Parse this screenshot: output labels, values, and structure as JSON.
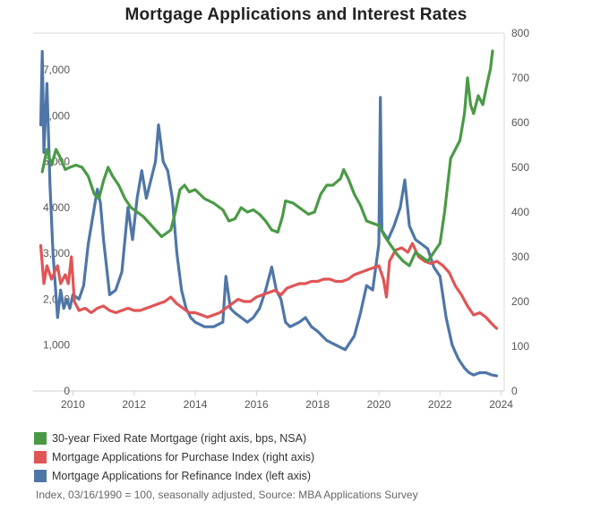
{
  "title": "Mortgage Applications and Interest Rates",
  "footnote": "Index, 03/16/1990 = 100, seasonally adjusted, Source: MBA Applications Survey",
  "legend": [
    {
      "label": "30-year Fixed Rate Mortgage (right axis, bps, NSA)",
      "color": "#4a9a45"
    },
    {
      "label": "Mortgage Applications for Purchase Index (right axis)",
      "color": "#e05556"
    },
    {
      "label": "Mortgage Applications for Refinance Index (left axis)",
      "color": "#4f76a8"
    }
  ],
  "chart_data": {
    "type": "line",
    "title": "Mortgage Applications and Interest Rates",
    "xlabel": "",
    "ylabel": "",
    "xlim": [
      2008.7,
      2024.1
    ],
    "x_ticks": [
      2010,
      2012,
      2014,
      2016,
      2018,
      2020,
      2022,
      2024
    ],
    "left_axis": {
      "ylim": [
        0,
        7800
      ],
      "ticks": [
        0,
        1000,
        2000,
        3000,
        4000,
        5000,
        6000,
        7000
      ],
      "tick_labels": [
        "0",
        "1,000",
        "2,000",
        "3,000",
        "4,000",
        "5,000",
        "6,000",
        "7,000"
      ]
    },
    "right_axis": {
      "ylim": [
        0,
        800
      ],
      "ticks": [
        0,
        100,
        200,
        300,
        400,
        500,
        600,
        700,
        800
      ],
      "tick_labels": [
        "0",
        "100",
        "200",
        "300",
        "400",
        "500",
        "600",
        "700",
        "800"
      ]
    },
    "grid": false,
    "legend_position": "bottom-left",
    "series": [
      {
        "name": "30-year Fixed Rate Mortgage (right axis, bps, NSA)",
        "axis": "right",
        "color": "#4a9a45",
        "points": [
          [
            2009.0,
            490
          ],
          [
            2009.15,
            540
          ],
          [
            2009.3,
            505
          ],
          [
            2009.45,
            540
          ],
          [
            2009.6,
            520
          ],
          [
            2009.75,
            495
          ],
          [
            2009.9,
            500
          ],
          [
            2010.1,
            505
          ],
          [
            2010.3,
            500
          ],
          [
            2010.5,
            480
          ],
          [
            2010.7,
            440
          ],
          [
            2010.85,
            430
          ],
          [
            2011.0,
            470
          ],
          [
            2011.15,
            500
          ],
          [
            2011.3,
            480
          ],
          [
            2011.5,
            460
          ],
          [
            2011.7,
            430
          ],
          [
            2011.9,
            410
          ],
          [
            2012.1,
            400
          ],
          [
            2012.3,
            390
          ],
          [
            2012.5,
            375
          ],
          [
            2012.7,
            360
          ],
          [
            2012.9,
            345
          ],
          [
            2013.0,
            350
          ],
          [
            2013.2,
            360
          ],
          [
            2013.35,
            400
          ],
          [
            2013.5,
            450
          ],
          [
            2013.65,
            460
          ],
          [
            2013.8,
            445
          ],
          [
            2014.0,
            450
          ],
          [
            2014.3,
            430
          ],
          [
            2014.6,
            420
          ],
          [
            2014.9,
            405
          ],
          [
            2015.1,
            380
          ],
          [
            2015.3,
            385
          ],
          [
            2015.5,
            410
          ],
          [
            2015.7,
            400
          ],
          [
            2015.9,
            405
          ],
          [
            2016.1,
            395
          ],
          [
            2016.3,
            380
          ],
          [
            2016.5,
            360
          ],
          [
            2016.7,
            355
          ],
          [
            2016.85,
            390
          ],
          [
            2016.95,
            425
          ],
          [
            2017.2,
            420
          ],
          [
            2017.5,
            405
          ],
          [
            2017.7,
            395
          ],
          [
            2017.9,
            400
          ],
          [
            2018.1,
            440
          ],
          [
            2018.3,
            460
          ],
          [
            2018.5,
            460
          ],
          [
            2018.75,
            475
          ],
          [
            2018.85,
            495
          ],
          [
            2019.0,
            475
          ],
          [
            2019.2,
            440
          ],
          [
            2019.4,
            415
          ],
          [
            2019.6,
            380
          ],
          [
            2019.8,
            375
          ],
          [
            2020.0,
            370
          ],
          [
            2020.2,
            345
          ],
          [
            2020.4,
            325
          ],
          [
            2020.6,
            305
          ],
          [
            2020.8,
            290
          ],
          [
            2021.0,
            280
          ],
          [
            2021.2,
            310
          ],
          [
            2021.4,
            300
          ],
          [
            2021.6,
            290
          ],
          [
            2021.8,
            310
          ],
          [
            2022.0,
            330
          ],
          [
            2022.15,
            400
          ],
          [
            2022.35,
            520
          ],
          [
            2022.5,
            540
          ],
          [
            2022.65,
            560
          ],
          [
            2022.8,
            620
          ],
          [
            2022.9,
            700
          ],
          [
            2023.0,
            640
          ],
          [
            2023.1,
            620
          ],
          [
            2023.25,
            660
          ],
          [
            2023.4,
            640
          ],
          [
            2023.55,
            690
          ],
          [
            2023.65,
            720
          ],
          [
            2023.72,
            760
          ]
        ]
      },
      {
        "name": "Mortgage Applications for Purchase Index (right axis)",
        "axis": "right",
        "color": "#e05556",
        "points": [
          [
            2008.95,
            325
          ],
          [
            2009.05,
            240
          ],
          [
            2009.15,
            280
          ],
          [
            2009.3,
            250
          ],
          [
            2009.5,
            280
          ],
          [
            2009.6,
            240
          ],
          [
            2009.75,
            260
          ],
          [
            2009.85,
            240
          ],
          [
            2009.95,
            300
          ],
          [
            2010.05,
            200
          ],
          [
            2010.2,
            180
          ],
          [
            2010.4,
            185
          ],
          [
            2010.6,
            175
          ],
          [
            2010.8,
            185
          ],
          [
            2011.0,
            190
          ],
          [
            2011.2,
            180
          ],
          [
            2011.4,
            175
          ],
          [
            2011.6,
            180
          ],
          [
            2011.8,
            185
          ],
          [
            2012.0,
            180
          ],
          [
            2012.2,
            180
          ],
          [
            2012.4,
            185
          ],
          [
            2012.6,
            190
          ],
          [
            2012.8,
            195
          ],
          [
            2013.0,
            200
          ],
          [
            2013.2,
            210
          ],
          [
            2013.4,
            195
          ],
          [
            2013.6,
            185
          ],
          [
            2013.8,
            175
          ],
          [
            2014.0,
            175
          ],
          [
            2014.2,
            170
          ],
          [
            2014.4,
            165
          ],
          [
            2014.6,
            170
          ],
          [
            2014.8,
            175
          ],
          [
            2015.0,
            185
          ],
          [
            2015.2,
            195
          ],
          [
            2015.4,
            205
          ],
          [
            2015.6,
            200
          ],
          [
            2015.8,
            200
          ],
          [
            2016.0,
            210
          ],
          [
            2016.2,
            215
          ],
          [
            2016.4,
            220
          ],
          [
            2016.6,
            225
          ],
          [
            2016.8,
            215
          ],
          [
            2017.0,
            230
          ],
          [
            2017.2,
            235
          ],
          [
            2017.4,
            240
          ],
          [
            2017.6,
            240
          ],
          [
            2017.8,
            245
          ],
          [
            2018.0,
            245
          ],
          [
            2018.2,
            250
          ],
          [
            2018.4,
            250
          ],
          [
            2018.6,
            245
          ],
          [
            2018.8,
            245
          ],
          [
            2019.0,
            250
          ],
          [
            2019.2,
            260
          ],
          [
            2019.4,
            265
          ],
          [
            2019.6,
            270
          ],
          [
            2019.8,
            275
          ],
          [
            2020.0,
            280
          ],
          [
            2020.15,
            250
          ],
          [
            2020.25,
            210
          ],
          [
            2020.35,
            290
          ],
          [
            2020.55,
            315
          ],
          [
            2020.75,
            320
          ],
          [
            2020.95,
            310
          ],
          [
            2021.1,
            330
          ],
          [
            2021.3,
            300
          ],
          [
            2021.5,
            290
          ],
          [
            2021.7,
            285
          ],
          [
            2021.9,
            290
          ],
          [
            2022.1,
            280
          ],
          [
            2022.3,
            265
          ],
          [
            2022.5,
            235
          ],
          [
            2022.7,
            215
          ],
          [
            2022.9,
            190
          ],
          [
            2023.1,
            170
          ],
          [
            2023.3,
            175
          ],
          [
            2023.5,
            165
          ],
          [
            2023.7,
            150
          ],
          [
            2023.85,
            140
          ]
        ]
      },
      {
        "name": "Mortgage Applications for Refinance Index (left axis)",
        "axis": "left",
        "color": "#4f76a8",
        "points": [
          [
            2008.95,
            5800
          ],
          [
            2009.0,
            7400
          ],
          [
            2009.05,
            5200
          ],
          [
            2009.15,
            6700
          ],
          [
            2009.25,
            4500
          ],
          [
            2009.35,
            3000
          ],
          [
            2009.5,
            1600
          ],
          [
            2009.6,
            2200
          ],
          [
            2009.7,
            1800
          ],
          [
            2009.8,
            2000
          ],
          [
            2009.9,
            1800
          ],
          [
            2010.0,
            2100
          ],
          [
            2010.2,
            2000
          ],
          [
            2010.35,
            2300
          ],
          [
            2010.5,
            3200
          ],
          [
            2010.6,
            3600
          ],
          [
            2010.7,
            4000
          ],
          [
            2010.8,
            4400
          ],
          [
            2010.9,
            4100
          ],
          [
            2011.0,
            3300
          ],
          [
            2011.2,
            2100
          ],
          [
            2011.4,
            2200
          ],
          [
            2011.6,
            2600
          ],
          [
            2011.8,
            4000
          ],
          [
            2011.95,
            3300
          ],
          [
            2012.1,
            4200
          ],
          [
            2012.25,
            4800
          ],
          [
            2012.4,
            4200
          ],
          [
            2012.55,
            4600
          ],
          [
            2012.7,
            5000
          ],
          [
            2012.8,
            5800
          ],
          [
            2012.95,
            5000
          ],
          [
            2013.1,
            4800
          ],
          [
            2013.25,
            4200
          ],
          [
            2013.4,
            3000
          ],
          [
            2013.55,
            2200
          ],
          [
            2013.7,
            1800
          ],
          [
            2013.85,
            1600
          ],
          [
            2014.0,
            1500
          ],
          [
            2014.3,
            1400
          ],
          [
            2014.6,
            1400
          ],
          [
            2014.9,
            1500
          ],
          [
            2015.0,
            2500
          ],
          [
            2015.15,
            1800
          ],
          [
            2015.3,
            1700
          ],
          [
            2015.5,
            1600
          ],
          [
            2015.7,
            1500
          ],
          [
            2015.9,
            1600
          ],
          [
            2016.1,
            1800
          ],
          [
            2016.3,
            2200
          ],
          [
            2016.5,
            2700
          ],
          [
            2016.65,
            2200
          ],
          [
            2016.8,
            2000
          ],
          [
            2016.95,
            1500
          ],
          [
            2017.1,
            1400
          ],
          [
            2017.4,
            1500
          ],
          [
            2017.6,
            1600
          ],
          [
            2017.8,
            1400
          ],
          [
            2018.0,
            1300
          ],
          [
            2018.3,
            1100
          ],
          [
            2018.6,
            1000
          ],
          [
            2018.9,
            900
          ],
          [
            2019.0,
            1000
          ],
          [
            2019.2,
            1200
          ],
          [
            2019.4,
            1700
          ],
          [
            2019.6,
            2300
          ],
          [
            2019.8,
            2200
          ],
          [
            2020.0,
            3200
          ],
          [
            2020.05,
            6400
          ],
          [
            2020.1,
            3500
          ],
          [
            2020.3,
            3300
          ],
          [
            2020.5,
            3600
          ],
          [
            2020.7,
            4000
          ],
          [
            2020.85,
            4600
          ],
          [
            2021.0,
            3600
          ],
          [
            2021.2,
            3300
          ],
          [
            2021.4,
            3200
          ],
          [
            2021.6,
            3100
          ],
          [
            2021.8,
            2700
          ],
          [
            2022.0,
            2500
          ],
          [
            2022.2,
            1600
          ],
          [
            2022.4,
            1000
          ],
          [
            2022.6,
            700
          ],
          [
            2022.8,
            500
          ],
          [
            2022.95,
            400
          ],
          [
            2023.1,
            350
          ],
          [
            2023.3,
            400
          ],
          [
            2023.5,
            400
          ],
          [
            2023.7,
            350
          ],
          [
            2023.85,
            330
          ]
        ]
      }
    ]
  }
}
